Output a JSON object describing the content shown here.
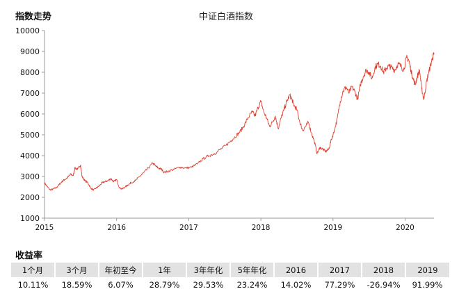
{
  "header": {
    "index_trend_label": "指数走势"
  },
  "colors": {
    "line": "#e04030",
    "axis": "#999999",
    "header_bg": "#e2e2e2"
  },
  "chart_data": {
    "type": "line",
    "title": "中证白酒指数",
    "xlabel": "",
    "ylabel": "",
    "ylim": [
      1000,
      10000
    ],
    "yticks": [
      "1000",
      "2000",
      "3000",
      "4000",
      "5000",
      "6000",
      "7000",
      "8000",
      "9000",
      "10000"
    ],
    "xlim": [
      2015.0,
      2020.4
    ],
    "xticks": [
      "2015",
      "2016",
      "2017",
      "2018",
      "2019",
      "2020"
    ],
    "grid": false,
    "legend": "none",
    "series": [
      {
        "name": "中证白酒指数",
        "x": [
          2015.0,
          2015.04,
          2015.08,
          2015.12,
          2015.16,
          2015.2,
          2015.24,
          2015.28,
          2015.32,
          2015.36,
          2015.4,
          2015.42,
          2015.46,
          2015.5,
          2015.52,
          2015.56,
          2015.6,
          2015.64,
          2015.68,
          2015.72,
          2015.76,
          2015.8,
          2015.84,
          2015.88,
          2015.92,
          2015.96,
          2016.0,
          2016.04,
          2016.08,
          2016.12,
          2016.16,
          2016.2,
          2016.26,
          2016.32,
          2016.38,
          2016.44,
          2016.5,
          2016.54,
          2016.58,
          2016.62,
          2016.66,
          2016.72,
          2016.8,
          2016.88,
          2016.96,
          2017.04,
          2017.12,
          2017.2,
          2017.28,
          2017.36,
          2017.44,
          2017.52,
          2017.58,
          2017.64,
          2017.7,
          2017.76,
          2017.82,
          2017.88,
          2017.92,
          2017.96,
          2018.0,
          2018.04,
          2018.08,
          2018.12,
          2018.16,
          2018.2,
          2018.24,
          2018.28,
          2018.32,
          2018.36,
          2018.4,
          2018.43,
          2018.46,
          2018.5,
          2018.54,
          2018.58,
          2018.62,
          2018.66,
          2018.7,
          2018.74,
          2018.78,
          2018.82,
          2018.86,
          2018.9,
          2018.94,
          2018.98,
          2019.02,
          2019.06,
          2019.1,
          2019.14,
          2019.18,
          2019.22,
          2019.26,
          2019.3,
          2019.34,
          2019.38,
          2019.42,
          2019.46,
          2019.5,
          2019.54,
          2019.58,
          2019.62,
          2019.66,
          2019.7,
          2019.74,
          2019.78,
          2019.82,
          2019.86,
          2019.9,
          2019.94,
          2019.98,
          2020.02,
          2020.05,
          2020.08,
          2020.11,
          2020.14,
          2020.17,
          2020.2,
          2020.23,
          2020.26,
          2020.29,
          2020.32,
          2020.35,
          2020.38,
          2020.4
        ],
        "values": [
          2700,
          2500,
          2350,
          2400,
          2450,
          2600,
          2750,
          2850,
          2950,
          3100,
          3050,
          3400,
          3350,
          3550,
          3000,
          2800,
          2700,
          2450,
          2350,
          2450,
          2550,
          2700,
          2750,
          2800,
          2900,
          2750,
          2850,
          2450,
          2400,
          2500,
          2600,
          2700,
          2800,
          3000,
          3200,
          3400,
          3650,
          3500,
          3400,
          3350,
          3200,
          3250,
          3350,
          3450,
          3400,
          3450,
          3600,
          3850,
          4000,
          4100,
          4300,
          4500,
          4700,
          4900,
          5100,
          5400,
          5800,
          6100,
          5900,
          6300,
          6600,
          6100,
          5800,
          5400,
          5600,
          5900,
          5300,
          5800,
          6200,
          6600,
          6900,
          6700,
          6400,
          6200,
          5600,
          5200,
          5400,
          5600,
          5100,
          4700,
          4100,
          4400,
          4300,
          4200,
          4300,
          4800,
          5200,
          5800,
          6600,
          7100,
          7300,
          7000,
          7300,
          7100,
          6700,
          7400,
          7800,
          8100,
          8000,
          7700,
          8200,
          8400,
          8300,
          8000,
          8200,
          8300,
          8200,
          8100,
          8400,
          8300,
          8100,
          8700,
          8600,
          8100,
          7700,
          7400,
          7800,
          8100,
          7200,
          6700,
          7400,
          7900,
          8300,
          8700,
          8850
        ]
      }
    ]
  },
  "returns": {
    "title": "收益率",
    "headers": [
      "1个月",
      "3个月",
      "年初至今",
      "1年",
      "3年年化",
      "5年年化",
      "2016",
      "2017",
      "2018",
      "2019"
    ],
    "values": [
      "10.11%",
      "18.59%",
      "6.07%",
      "28.79%",
      "29.53%",
      "23.24%",
      "14.02%",
      "77.29%",
      "-26.94%",
      "91.99%"
    ]
  }
}
